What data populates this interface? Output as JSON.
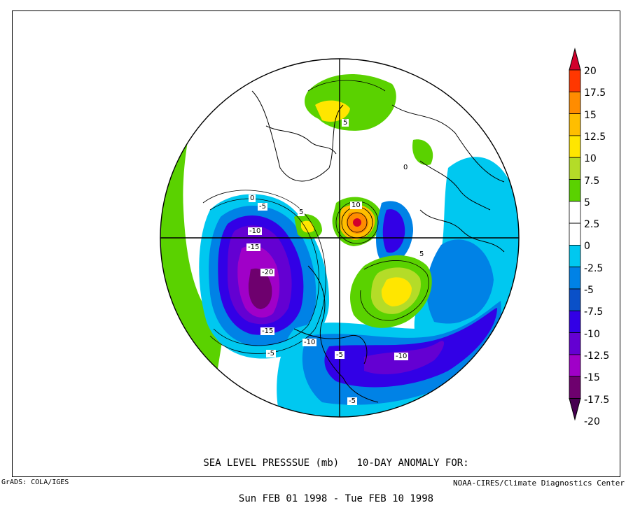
{
  "title": {
    "line1": "SEA LEVEL PRESSSUE (mb)   10-DAY ANOMALY FOR:",
    "line2": "Sun FEB 01 1998 - Tue FEB 10 1998"
  },
  "credits": {
    "left": "GrADS: COLA/IGES",
    "right": "NOAA-CIRES/Climate Diagnostics Center"
  },
  "colorbar": {
    "labels": [
      "20",
      "17.5",
      "15",
      "12.5",
      "10",
      "7.5",
      "5",
      "2.5",
      "0",
      "-2.5",
      "-5",
      "-7.5",
      "-10",
      "-12.5",
      "-15",
      "-17.5",
      "-20"
    ],
    "colors": [
      "#d2002c",
      "#ff3700",
      "#ff8c00",
      "#ffbe00",
      "#ffe600",
      "#b4dc28",
      "#5ad200",
      "#ffffff",
      "#ffffff",
      "#00c8f0",
      "#0082e6",
      "#0a50c8",
      "#3200e6",
      "#6400d2",
      "#a000c8",
      "#6e006e",
      "#460050"
    ]
  },
  "contour_labels": [
    {
      "text": "-10"
    },
    {
      "text": "-15"
    },
    {
      "text": "-20"
    },
    {
      "text": "-15"
    },
    {
      "text": "-5"
    },
    {
      "text": "-10"
    },
    {
      "text": "-5"
    },
    {
      "text": "-10"
    },
    {
      "text": "-5"
    },
    {
      "text": "10"
    },
    {
      "text": "5"
    },
    {
      "text": "5"
    },
    {
      "text": "0"
    },
    {
      "text": "-5"
    },
    {
      "text": "5"
    },
    {
      "text": "0"
    }
  ]
}
